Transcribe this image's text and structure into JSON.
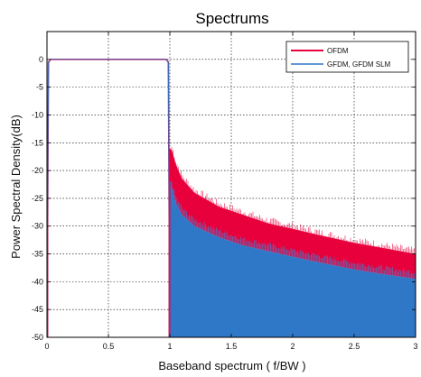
{
  "chart_data": {
    "type": "area",
    "title": "Spectrums",
    "xlabel": "Baseband spectrum ( f/BW )",
    "ylabel": "Power Spectral Density(dB)",
    "xlim": [
      0,
      3
    ],
    "ylim": [
      -50,
      5
    ],
    "x_ticks": [
      "0",
      "0.5",
      "1",
      "1.5",
      "2",
      "2.5",
      "3"
    ],
    "y_ticks": [
      "0",
      "-5",
      "-10",
      "-15",
      "-20",
      "-25",
      "-30",
      "-35",
      "-40",
      "-45",
      "-50"
    ],
    "grid": true,
    "grid_style": "dotted",
    "legend_position": "top-right",
    "series": [
      {
        "name": "OFDM",
        "color": "#e8003d",
        "in_band_level": 0,
        "out_of_band_upper_envelope": [
          {
            "x": 1.0,
            "y": -16.0
          },
          {
            "x": 1.02,
            "y": -16.5
          },
          {
            "x": 1.05,
            "y": -19.0
          },
          {
            "x": 1.1,
            "y": -21.5
          },
          {
            "x": 1.2,
            "y": -24.0
          },
          {
            "x": 1.4,
            "y": -26.5
          },
          {
            "x": 1.6,
            "y": -28.0
          },
          {
            "x": 1.8,
            "y": -29.5
          },
          {
            "x": 2.0,
            "y": -30.5
          },
          {
            "x": 2.25,
            "y": -31.8
          },
          {
            "x": 2.5,
            "y": -33.0
          },
          {
            "x": 2.75,
            "y": -34.0
          },
          {
            "x": 3.0,
            "y": -35.0
          }
        ],
        "out_of_band_lower_envelope": [
          {
            "x": 1.0,
            "y": -22.0
          },
          {
            "x": 1.05,
            "y": -26.0
          },
          {
            "x": 1.1,
            "y": -28.0
          },
          {
            "x": 1.2,
            "y": -30.0
          },
          {
            "x": 1.4,
            "y": -32.0
          },
          {
            "x": 1.6,
            "y": -33.5
          },
          {
            "x": 1.8,
            "y": -34.5
          },
          {
            "x": 2.0,
            "y": -35.5
          },
          {
            "x": 2.25,
            "y": -36.7
          },
          {
            "x": 2.5,
            "y": -37.8
          },
          {
            "x": 2.75,
            "y": -38.7
          },
          {
            "x": 3.0,
            "y": -39.5
          }
        ]
      },
      {
        "name": "GFDM, GFDM SLM",
        "color": "#2f78c8",
        "in_band_level": 0,
        "out_of_band_upper_envelope": [
          {
            "x": 1.0,
            "y": -22.0
          },
          {
            "x": 1.05,
            "y": -26.0
          },
          {
            "x": 1.1,
            "y": -28.0
          },
          {
            "x": 1.2,
            "y": -30.0
          },
          {
            "x": 1.4,
            "y": -32.0
          },
          {
            "x": 1.6,
            "y": -33.5
          },
          {
            "x": 1.8,
            "y": -34.5
          },
          {
            "x": 2.0,
            "y": -35.5
          },
          {
            "x": 2.25,
            "y": -36.7
          },
          {
            "x": 2.5,
            "y": -37.8
          },
          {
            "x": 2.75,
            "y": -38.7
          },
          {
            "x": 3.0,
            "y": -39.5
          }
        ],
        "floor": -50
      }
    ]
  }
}
